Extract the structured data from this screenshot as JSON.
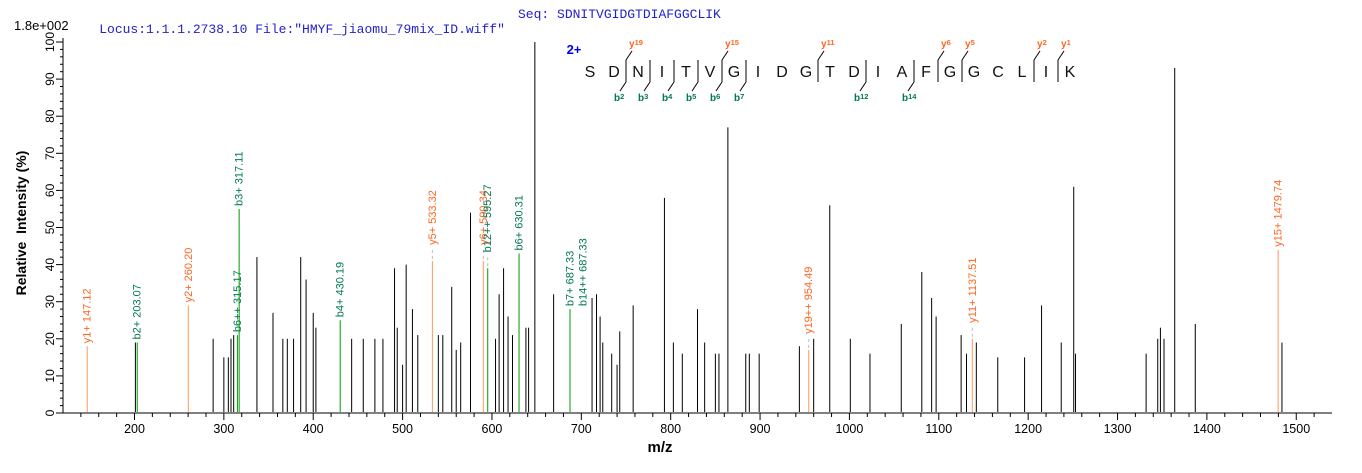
{
  "header": {
    "locus_file": "Locus:1.1.1.2738.10 File:\"HMYF_jiaomu_79mix_ID.wiff\"",
    "seq_label": "Seq:",
    "seq_value": "SDNITVGIDGTDIAFGGCLIK",
    "max_intensity_label": "1.8e+002"
  },
  "colors": {
    "peak": "#000000",
    "y_line": "#FF9955",
    "y_label": "#FF6622",
    "b_line": "#009900",
    "b_label": "#007755",
    "leader": "#BBBBBB",
    "axis": "#000000",
    "header_text": "#2222CC",
    "charge_label": "#0000EE",
    "residue": "#111111"
  },
  "chart_data": {
    "type": "bar",
    "subtype": "peptide-msms-spectrum",
    "title": "",
    "xlabel": "m/z",
    "ylabel": "Relative  Intensity (%)",
    "xlim": [
      120,
      1540
    ],
    "ylim": [
      0,
      100
    ],
    "x_major_ticks": [
      200,
      300,
      400,
      500,
      600,
      700,
      800,
      900,
      1000,
      1100,
      1200,
      1300,
      1400,
      1500
    ],
    "x_minor_step": 20,
    "y_major_ticks": [
      0,
      10,
      20,
      30,
      40,
      50,
      60,
      70,
      80,
      90,
      100
    ],
    "y_minor_step": 2,
    "grid": false,
    "precursor_charge_label": "2+",
    "peptide_sequence": "SDNITVGIDGTDIAFGGCLIK",
    "fragment_cleavages": [
      {
        "after": 2,
        "y": "y19",
        "b": "b2"
      },
      {
        "after": 3,
        "b": "b3"
      },
      {
        "after": 4,
        "b": "b4"
      },
      {
        "after": 5,
        "b": "b5"
      },
      {
        "after": 6,
        "y": "y15",
        "b": "b6"
      },
      {
        "after": 7,
        "b": "b7"
      },
      {
        "after": 10,
        "y": "y11"
      },
      {
        "after": 12,
        "b": "b12"
      },
      {
        "after": 14,
        "b": "b14"
      },
      {
        "after": 15,
        "y": "y6"
      },
      {
        "after": 16,
        "y": "y5"
      },
      {
        "after": 19,
        "y": "y2"
      },
      {
        "after": 20,
        "y": "y1"
      }
    ],
    "peaks": [
      {
        "mz": 147.12,
        "i": 18,
        "s": "y",
        "label": "y1+ 147.12"
      },
      {
        "mz": 201,
        "i": 19
      },
      {
        "mz": 203.07,
        "i": 19,
        "s": "b",
        "label": "b2+ 203.07"
      },
      {
        "mz": 260.2,
        "i": 29,
        "s": "y",
        "label": "y2+ 260.20"
      },
      {
        "mz": 288,
        "i": 20
      },
      {
        "mz": 300,
        "i": 15
      },
      {
        "mz": 305,
        "i": 15
      },
      {
        "mz": 308,
        "i": 20
      },
      {
        "mz": 311,
        "i": 21
      },
      {
        "mz": 315.17,
        "i": 21,
        "s": "b",
        "label": "b6++ 315.17"
      },
      {
        "mz": 317.11,
        "i": 55,
        "s": "b",
        "label": "b3+ 317.11"
      },
      {
        "mz": 337,
        "i": 42
      },
      {
        "mz": 355,
        "i": 27
      },
      {
        "mz": 366,
        "i": 20
      },
      {
        "mz": 371,
        "i": 20
      },
      {
        "mz": 378,
        "i": 20
      },
      {
        "mz": 386,
        "i": 42
      },
      {
        "mz": 392,
        "i": 36
      },
      {
        "mz": 400,
        "i": 27
      },
      {
        "mz": 403,
        "i": 23
      },
      {
        "mz": 430.19,
        "i": 25,
        "s": "b",
        "label": "b4+ 430.19"
      },
      {
        "mz": 443,
        "i": 20
      },
      {
        "mz": 456,
        "i": 20
      },
      {
        "mz": 469,
        "i": 20
      },
      {
        "mz": 478,
        "i": 20
      },
      {
        "mz": 491,
        "i": 39
      },
      {
        "mz": 494,
        "i": 23
      },
      {
        "mz": 500,
        "i": 13
      },
      {
        "mz": 504,
        "i": 40
      },
      {
        "mz": 511,
        "i": 28
      },
      {
        "mz": 517,
        "i": 21
      },
      {
        "mz": 533.32,
        "i": 41,
        "s": "y",
        "label": "y5+ 533.32",
        "leader": true
      },
      {
        "mz": 540,
        "i": 21
      },
      {
        "mz": 545,
        "i": 21
      },
      {
        "mz": 555,
        "i": 34
      },
      {
        "mz": 560,
        "i": 17
      },
      {
        "mz": 565,
        "i": 19
      },
      {
        "mz": 576,
        "i": 54
      },
      {
        "mz": 590.34,
        "i": 41,
        "s": "y",
        "label": "y6+ 590.34",
        "leader": true
      },
      {
        "mz": 595.27,
        "i": 39,
        "s": "b",
        "label": "b12++ 595.27",
        "leader": true
      },
      {
        "mz": 604,
        "i": 20
      },
      {
        "mz": 608,
        "i": 32
      },
      {
        "mz": 613,
        "i": 39
      },
      {
        "mz": 618,
        "i": 26
      },
      {
        "mz": 623,
        "i": 21
      },
      {
        "mz": 630.31,
        "i": 43,
        "s": "b",
        "label": "b6+ 630.31"
      },
      {
        "mz": 638,
        "i": 23
      },
      {
        "mz": 641,
        "i": 23
      },
      {
        "mz": 648,
        "i": 100
      },
      {
        "mz": 669,
        "i": 32
      },
      {
        "mz": 687.33,
        "i": 28,
        "s": "b",
        "label": "b7+ 687.33",
        "label2": "b14++ 687.33"
      },
      {
        "mz": 712,
        "i": 31
      },
      {
        "mz": 717,
        "i": 32
      },
      {
        "mz": 721,
        "i": 26
      },
      {
        "mz": 724,
        "i": 19
      },
      {
        "mz": 734,
        "i": 16
      },
      {
        "mz": 740,
        "i": 13
      },
      {
        "mz": 743,
        "i": 22
      },
      {
        "mz": 758,
        "i": 29
      },
      {
        "mz": 793,
        "i": 58
      },
      {
        "mz": 803,
        "i": 19
      },
      {
        "mz": 813,
        "i": 16
      },
      {
        "mz": 830,
        "i": 28
      },
      {
        "mz": 838,
        "i": 19
      },
      {
        "mz": 850,
        "i": 16
      },
      {
        "mz": 854,
        "i": 16
      },
      {
        "mz": 864,
        "i": 77
      },
      {
        "mz": 884,
        "i": 16
      },
      {
        "mz": 888,
        "i": 16
      },
      {
        "mz": 899,
        "i": 16
      },
      {
        "mz": 944,
        "i": 18
      },
      {
        "mz": 954.49,
        "i": 17,
        "s": "y",
        "label": "y19++ 954.49",
        "leader": true
      },
      {
        "mz": 960,
        "i": 20
      },
      {
        "mz": 978,
        "i": 56
      },
      {
        "mz": 1001,
        "i": 20
      },
      {
        "mz": 1023,
        "i": 16
      },
      {
        "mz": 1058,
        "i": 24
      },
      {
        "mz": 1081,
        "i": 38
      },
      {
        "mz": 1092,
        "i": 31
      },
      {
        "mz": 1097,
        "i": 26
      },
      {
        "mz": 1125,
        "i": 21
      },
      {
        "mz": 1131,
        "i": 16
      },
      {
        "mz": 1137.51,
        "i": 20,
        "s": "y",
        "label": "y11+ 1137.51",
        "leader": true
      },
      {
        "mz": 1142,
        "i": 19
      },
      {
        "mz": 1166,
        "i": 15
      },
      {
        "mz": 1196,
        "i": 15
      },
      {
        "mz": 1215,
        "i": 29
      },
      {
        "mz": 1237,
        "i": 19
      },
      {
        "mz": 1251,
        "i": 61
      },
      {
        "mz": 1253,
        "i": 16
      },
      {
        "mz": 1332,
        "i": 16
      },
      {
        "mz": 1345,
        "i": 20
      },
      {
        "mz": 1348,
        "i": 23
      },
      {
        "mz": 1352,
        "i": 20
      },
      {
        "mz": 1364,
        "i": 93
      },
      {
        "mz": 1387,
        "i": 24
      },
      {
        "mz": 1479.74,
        "i": 44,
        "s": "y",
        "label": "y15+ 1479.74"
      },
      {
        "mz": 1484,
        "i": 19
      }
    ]
  }
}
